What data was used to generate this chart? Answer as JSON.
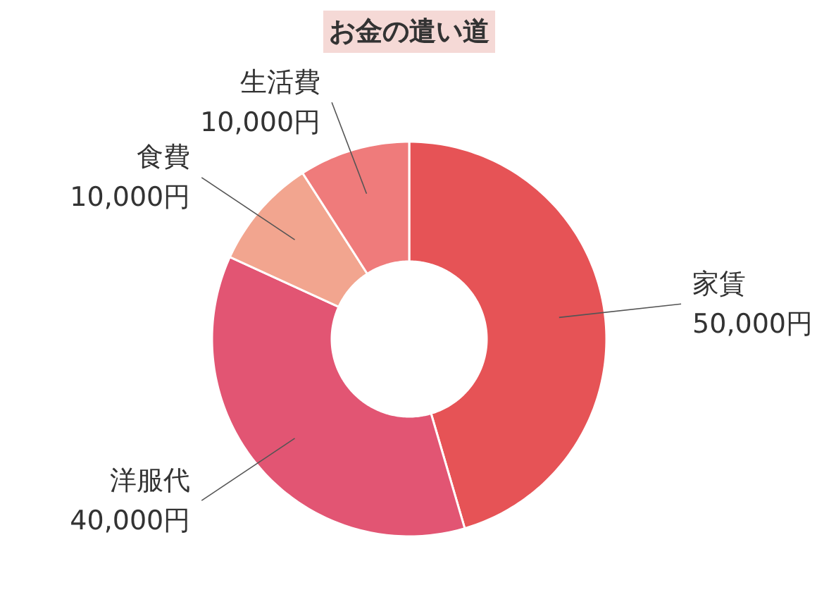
{
  "chart_data": {
    "type": "donut",
    "title": "お金の遣い道",
    "categories": [
      "家賃",
      "洋服代",
      "食費",
      "生活費"
    ],
    "values": [
      50000,
      40000,
      10000,
      10000
    ],
    "colors": [
      "#e65356",
      "#e25573",
      "#f2a58f",
      "#ef7b7b"
    ],
    "value_labels": [
      "50,000円",
      "40,000円",
      "10,000円",
      "10,000円"
    ]
  }
}
